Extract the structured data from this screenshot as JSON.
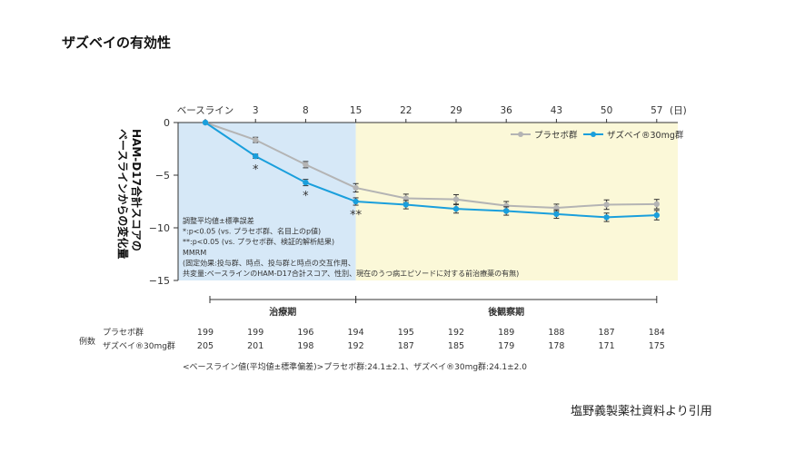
{
  "page": {
    "title": "ザズベイの有効性",
    "source": "塩野義製薬社資料より引用"
  },
  "chart_data": {
    "type": "line",
    "x_tick_labels": [
      "ベースライン",
      "3",
      "8",
      "15",
      "22",
      "29",
      "36",
      "43",
      "50",
      "57"
    ],
    "x_unit": "(日)",
    "ylabel": "HAM-D17合計スコアの\nベースラインからの変化量",
    "ylim": [
      -15,
      0
    ],
    "y_ticks": [
      0,
      -5,
      -10,
      -15
    ],
    "grid": false,
    "legend_placement": "top-right",
    "series": [
      {
        "name": "プラセボ群",
        "color": "#b4b4b4",
        "values": [
          0,
          -1.65,
          -4.0,
          -6.2,
          -7.2,
          -7.3,
          -7.9,
          -8.1,
          -7.8,
          -7.75
        ],
        "errors": [
          0,
          0.25,
          0.3,
          0.4,
          0.4,
          0.45,
          0.4,
          0.35,
          0.45,
          0.45
        ]
      },
      {
        "name": "ザズベイ®30mg群",
        "color": "#1a9fdc",
        "values": [
          0,
          -3.2,
          -5.7,
          -7.5,
          -7.8,
          -8.2,
          -8.4,
          -8.7,
          -9.0,
          -8.8
        ],
        "errors": [
          0,
          0.2,
          0.3,
          0.35,
          0.4,
          0.4,
          0.4,
          0.4,
          0.4,
          0.45
        ]
      }
    ],
    "significance": [
      {
        "x_index": 1,
        "mark": "*"
      },
      {
        "x_index": 2,
        "mark": "*"
      },
      {
        "x_index": 3,
        "mark": "**"
      }
    ],
    "periods": [
      {
        "label": "治療期",
        "from_index": 0,
        "to_index": 3,
        "color": "#d6e8f7"
      },
      {
        "label": "後観察期",
        "from_index": 3,
        "to_index": 9,
        "color": "#fbf8d8"
      }
    ],
    "notes": [
      "調整平均値±標準誤差",
      "*:p<0.05 (vs. プラセボ群、名目上のp値)",
      "**:p<0.05 (vs. プラセボ群、検証的解析結果)",
      "MMRM",
      "(固定効果:投与群、時点、投与群と時点の交互作用、",
      "共変量:ベースラインのHAM-D17合計スコア、性別、現在のうつ病エピソードに対する前治療薬の有無)"
    ],
    "n_table": {
      "label": "例数",
      "rows": [
        {
          "name": "プラセボ群",
          "values": [
            "199",
            "199",
            "196",
            "194",
            "195",
            "192",
            "189",
            "188",
            "187",
            "184"
          ]
        },
        {
          "name": "ザズベイ®30mg群",
          "values": [
            "205",
            "201",
            "198",
            "192",
            "187",
            "185",
            "179",
            "178",
            "171",
            "175"
          ]
        }
      ]
    },
    "baseline_note": "<ベースライン値(平均値±標準偏差)>プラセボ群:24.1±2.1、ザズベイ®30mg群:24.1±2.0"
  }
}
